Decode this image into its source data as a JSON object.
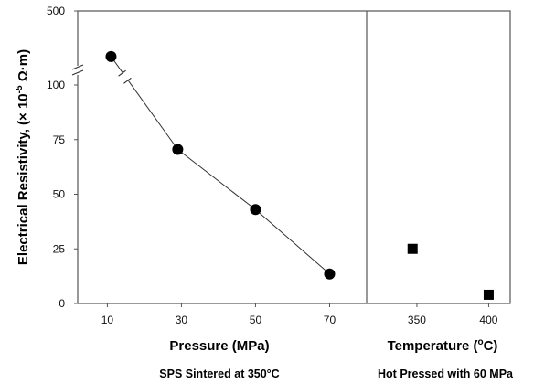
{
  "chart_data": {
    "type": "scatter",
    "ylabel": "Electrical Resistivity, (× 10",
    "ylabel_sup": "-5",
    "ylabel_unit": " Ω·m)",
    "y_ticks": [
      "0",
      "25",
      "50",
      "75",
      "100",
      "500"
    ],
    "y_tick_values": [
      0,
      25,
      50,
      75,
      100,
      500
    ],
    "y_axis_break": true,
    "y_range_lower": [
      0,
      100
    ],
    "y_range_upper_label": 500,
    "panels": [
      {
        "name": "pressure",
        "xlabel": "Pressure (MPa)",
        "subtitle": "SPS Sintered at 350°C",
        "x_ticks": [
          "10",
          "30",
          "50",
          "70"
        ],
        "x_tick_values": [
          10,
          30,
          50,
          70
        ],
        "x_range": [
          2,
          80
        ],
        "marker": "circle",
        "line": true,
        "line_break_after_first": true,
        "points": [
          {
            "x": 11,
            "y": 215
          },
          {
            "x": 29,
            "y": 70.5
          },
          {
            "x": 50,
            "y": 43
          },
          {
            "x": 70,
            "y": 13.5
          }
        ]
      },
      {
        "name": "temperature",
        "xlabel": "Temperature (",
        "xlabel_sup": "o",
        "xlabel_end": "C)",
        "subtitle": "Hot Pressed with 60 MPa",
        "x_ticks": [
          "350",
          "400"
        ],
        "x_tick_values": [
          350,
          400
        ],
        "x_range": [
          315,
          415
        ],
        "marker": "square",
        "line": false,
        "points": [
          {
            "x": 347,
            "y": 25
          },
          {
            "x": 400,
            "y": 4
          }
        ]
      }
    ]
  }
}
